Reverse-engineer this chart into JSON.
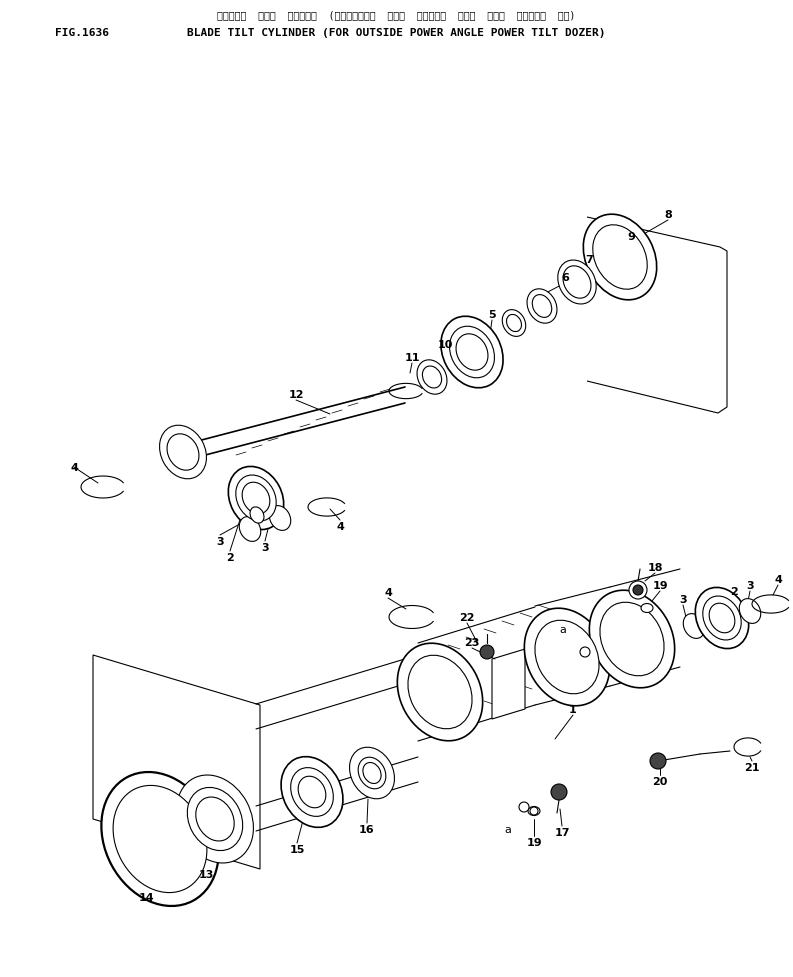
{
  "title_line1": "ブレード゜  チルト  シリンタ゜  (アウトサイト゜  パワー  アンク゜ル  パワー  チルト  ト゜ーサ゜  ヨウ)",
  "title_line2": "BLADE TILT CYLINDER (FOR OUTSIDE POWER ANGLE POWER TILT DOZER)",
  "fig_label": "FIG.1636",
  "bg": "#ffffff",
  "lc": "#000000",
  "fig_width": 7.93,
  "fig_height": 9.78,
  "dpi": 100
}
